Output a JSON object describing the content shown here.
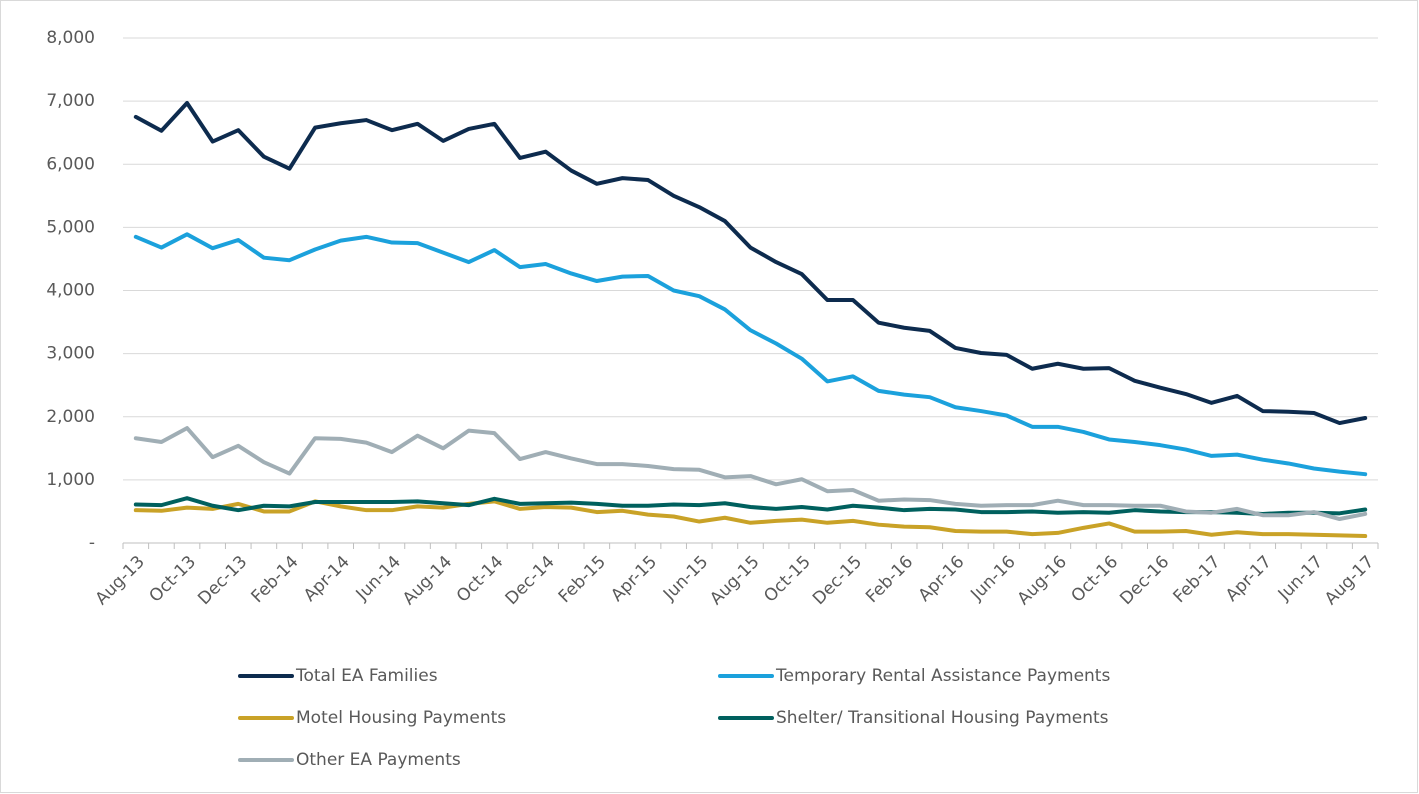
{
  "chart_data": {
    "type": "line",
    "categories": [
      "Aug-13",
      null,
      "Oct-13",
      null,
      "Dec-13",
      null,
      "Feb-14",
      null,
      "Apr-14",
      null,
      "Jun-14",
      null,
      "Aug-14",
      null,
      "Oct-14",
      null,
      "Dec-14",
      null,
      "Feb-15",
      null,
      "Apr-15",
      null,
      "Jun-15",
      null,
      "Aug-15",
      null,
      "Oct-15",
      null,
      "Dec-15",
      null,
      "Feb-16",
      null,
      "Apr-16",
      null,
      "Jun-16",
      null,
      "Aug-16",
      null,
      "Oct-16",
      null,
      "Dec-16",
      null,
      "Feb-17",
      null,
      "Apr-17",
      null,
      "Jun-17",
      null,
      "Aug-17"
    ],
    "series": [
      {
        "name": "Total EA Families",
        "color": "#0d2b4e",
        "values": [
          6750,
          6530,
          6970,
          6360,
          6540,
          6120,
          5930,
          6580,
          6650,
          6700,
          6540,
          6640,
          6370,
          6560,
          6640,
          6100,
          6200,
          5900,
          5690,
          5780,
          5750,
          5500,
          5320,
          5100,
          4680,
          4450,
          4260,
          3850,
          3850,
          3490,
          3410,
          3360,
          3090,
          3010,
          2980,
          2760,
          2840,
          2760,
          2770,
          2570,
          2460,
          2360,
          2220,
          2330,
          2090,
          2080,
          2060,
          1900,
          1980
        ]
      },
      {
        "name": "Temporary Rental Assistance Payments",
        "color": "#1ba1dc",
        "values": [
          4850,
          4680,
          4890,
          4670,
          4800,
          4520,
          4480,
          4650,
          4790,
          4850,
          4760,
          4750,
          4600,
          4450,
          4640,
          4370,
          4420,
          4270,
          4150,
          4220,
          4230,
          4000,
          3910,
          3700,
          3370,
          3160,
          2920,
          2560,
          2640,
          2410,
          2350,
          2310,
          2150,
          2090,
          2020,
          1840,
          1840,
          1760,
          1640,
          1600,
          1550,
          1480,
          1380,
          1400,
          1320,
          1260,
          1180,
          1130,
          1090
        ]
      },
      {
        "name": "Motel Housing Payments",
        "color": "#c9a227",
        "values": [
          520,
          510,
          560,
          540,
          620,
          500,
          500,
          660,
          580,
          520,
          520,
          580,
          560,
          620,
          660,
          540,
          570,
          560,
          490,
          510,
          450,
          420,
          340,
          400,
          320,
          350,
          370,
          320,
          350,
          290,
          260,
          250,
          190,
          180,
          180,
          140,
          160,
          240,
          310,
          180,
          180,
          190,
          130,
          170,
          140,
          140,
          130,
          120,
          110
        ]
      },
      {
        "name": "Shelter/ Transitional Housing Payments",
        "color": "#00605e",
        "values": [
          610,
          600,
          710,
          590,
          520,
          590,
          580,
          650,
          650,
          650,
          650,
          660,
          630,
          600,
          700,
          620,
          630,
          640,
          620,
          590,
          590,
          610,
          600,
          630,
          570,
          540,
          570,
          530,
          590,
          560,
          520,
          540,
          530,
          490,
          490,
          500,
          480,
          490,
          480,
          520,
          500,
          490,
          490,
          480,
          460,
          480,
          480,
          470,
          530
        ]
      },
      {
        "name": "Other EA Payments",
        "color": "#a0aeb5",
        "values": [
          1660,
          1600,
          1820,
          1360,
          1540,
          1280,
          1100,
          1660,
          1650,
          1590,
          1440,
          1700,
          1500,
          1780,
          1740,
          1330,
          1440,
          1340,
          1250,
          1250,
          1220,
          1170,
          1160,
          1040,
          1060,
          930,
          1010,
          820,
          840,
          670,
          690,
          680,
          620,
          590,
          600,
          600,
          670,
          600,
          600,
          590,
          590,
          500,
          480,
          540,
          440,
          440,
          490,
          380,
          460
        ]
      }
    ],
    "ylim": [
      0,
      8000
    ],
    "yticks": [
      {
        "value": 0,
        "label": "-"
      },
      {
        "value": 1000,
        "label": "1,000"
      },
      {
        "value": 2000,
        "label": "2,000"
      },
      {
        "value": 3000,
        "label": "3,000"
      },
      {
        "value": 4000,
        "label": "4,000"
      },
      {
        "value": 5000,
        "label": "5,000"
      },
      {
        "value": 6000,
        "label": "6,000"
      },
      {
        "value": 7000,
        "label": "7,000"
      },
      {
        "value": 8000,
        "label": "8,000"
      }
    ],
    "grid": true,
    "legend": "bottom"
  }
}
